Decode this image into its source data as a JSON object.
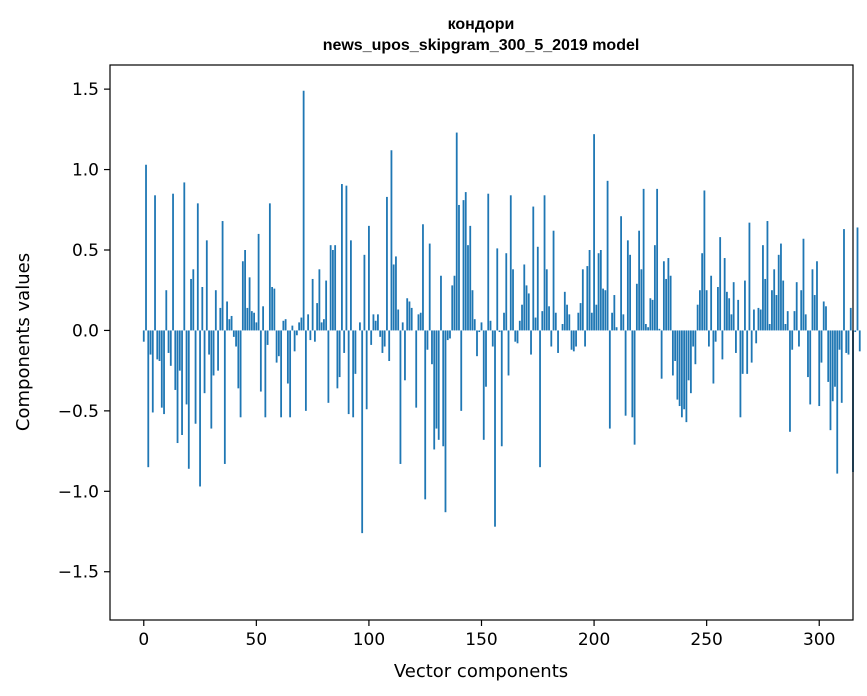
{
  "chart_data": {
    "type": "bar",
    "title": "кондори",
    "subtitle": "news_upos_skipgram_300_5_2019 model",
    "xlabel": "Vector components",
    "ylabel": "Components values",
    "xlim": [
      -15,
      315
    ],
    "ylim": [
      -1.8,
      1.65
    ],
    "x_ticks": [
      {
        "value": 0,
        "label": "0"
      },
      {
        "value": 50,
        "label": "50"
      },
      {
        "value": 100,
        "label": "100"
      },
      {
        "value": 150,
        "label": "150"
      },
      {
        "value": 200,
        "label": "200"
      },
      {
        "value": 250,
        "label": "250"
      },
      {
        "value": 300,
        "label": "300"
      }
    ],
    "y_ticks": [
      {
        "value": 1.5,
        "label": "1.5"
      },
      {
        "value": 1.0,
        "label": "1.0"
      },
      {
        "value": 0.5,
        "label": "0.5"
      },
      {
        "value": 0.0,
        "label": "0.0"
      },
      {
        "value": -0.5,
        "label": "−0.5"
      },
      {
        "value": -1.0,
        "label": "−1.0"
      },
      {
        "value": -1.5,
        "label": "−1.5"
      }
    ],
    "grid": false,
    "bar_color": "#1f77b4",
    "values": [
      -0.07,
      1.03,
      -0.85,
      -0.15,
      -0.51,
      0.84,
      -0.18,
      -0.19,
      -0.48,
      -0.52,
      0.25,
      -0.14,
      -0.22,
      0.85,
      -0.37,
      -0.7,
      -0.25,
      -0.65,
      0.92,
      -0.46,
      -0.86,
      0.32,
      0.38,
      -0.58,
      0.79,
      -0.97,
      0.27,
      -0.39,
      0.56,
      -0.15,
      -0.61,
      -0.28,
      0.25,
      -0.25,
      0.14,
      0.68,
      -0.83,
      0.18,
      0.07,
      0.09,
      -0.04,
      -0.1,
      -0.36,
      -0.54,
      0.43,
      0.5,
      0.14,
      0.33,
      0.12,
      0.11,
      0.05,
      0.6,
      -0.38,
      0.15,
      -0.54,
      -0.09,
      0.79,
      0.27,
      0.26,
      -0.2,
      -0.16,
      -0.54,
      0.06,
      0.07,
      -0.33,
      -0.54,
      0.03,
      -0.13,
      -0.03,
      0.05,
      0.08,
      1.49,
      -0.5,
      0.1,
      -0.06,
      0.32,
      -0.07,
      0.17,
      0.38,
      0.05,
      0.07,
      0.31,
      -0.45,
      0.53,
      0.5,
      0.53,
      -0.36,
      -0.29,
      0.91,
      -0.14,
      0.9,
      -0.52,
      0.56,
      -0.54,
      -0.27,
      0.0,
      0.05,
      -1.26,
      0.47,
      -0.49,
      0.65,
      -0.09,
      0.1,
      0.06,
      0.1,
      -0.04,
      -0.14,
      -0.1,
      0.83,
      -0.19,
      1.12,
      0.41,
      0.46,
      0.13,
      -0.83,
      0.05,
      -0.31,
      0.2,
      0.18,
      0.14,
      0.0,
      -0.48,
      0.1,
      0.11,
      0.66,
      -1.05,
      -0.12,
      0.54,
      -0.21,
      -0.74,
      -0.61,
      -0.68,
      0.34,
      -0.72,
      -1.13,
      -0.06,
      -0.05,
      0.28,
      0.34,
      1.23,
      0.78,
      -0.5,
      0.81,
      0.86,
      0.53,
      0.65,
      0.25,
      0.07,
      -0.16,
      -0.01,
      0.05,
      -0.68,
      -0.35,
      0.85,
      0.06,
      -0.1,
      -1.22,
      0.51,
      -0.01,
      -0.72,
      0.11,
      0.48,
      -0.28,
      0.84,
      0.38,
      -0.07,
      -0.08,
      0.06,
      0.16,
      0.41,
      0.28,
      0.23,
      -0.15,
      0.77,
      0.08,
      0.52,
      -0.85,
      0.12,
      0.84,
      0.38,
      0.15,
      -0.1,
      0.62,
      0.11,
      -0.14,
      0.0,
      0.04,
      0.24,
      0.16,
      0.1,
      -0.12,
      -0.13,
      -0.1,
      0.11,
      0.17,
      0.38,
      -0.1,
      0.4,
      0.5,
      0.11,
      1.22,
      0.16,
      0.48,
      0.5,
      0.26,
      0.25,
      0.93,
      -0.61,
      0.11,
      0.22,
      0.02,
      0.0,
      0.71,
      0.1,
      -0.53,
      0.56,
      0.47,
      -0.54,
      -0.71,
      0.29,
      0.62,
      0.38,
      0.88,
      0.04,
      0.02,
      0.2,
      0.19,
      0.53,
      0.88,
      0.01,
      -0.3,
      0.43,
      0.32,
      0.45,
      0.34,
      -0.28,
      -0.19,
      -0.43,
      -0.47,
      -0.54,
      -0.49,
      -0.57,
      -0.31,
      -0.39,
      -0.1,
      -0.21,
      0.16,
      0.25,
      0.48,
      0.87,
      0.25,
      -0.1,
      0.34,
      -0.33,
      -0.07,
      0.27,
      0.58,
      -0.18,
      0.45,
      0.24,
      0.2,
      0.1,
      0.3,
      -0.14,
      0.19,
      -0.54,
      -0.27,
      0.31,
      -0.27,
      0.67,
      -0.2,
      0.13,
      -0.08,
      0.14,
      0.13,
      0.53,
      0.32,
      0.68,
      0.04,
      0.25,
      0.38,
      0.22,
      0.47,
      0.54,
      0.31,
      0.04,
      0.12,
      -0.63,
      -0.12,
      0.12,
      0.3,
      -0.1,
      0.25,
      0.57,
      0.1,
      -0.29,
      -0.46,
      0.38,
      0.22,
      0.43,
      -0.47,
      -0.2,
      0.18,
      0.15,
      -0.32,
      -0.62,
      -0.44,
      -0.35,
      -0.89,
      -0.12,
      -0.45,
      0.63,
      -0.14,
      -0.15,
      0.14,
      -0.88,
      -0.01,
      0.64,
      -0.13
    ]
  }
}
